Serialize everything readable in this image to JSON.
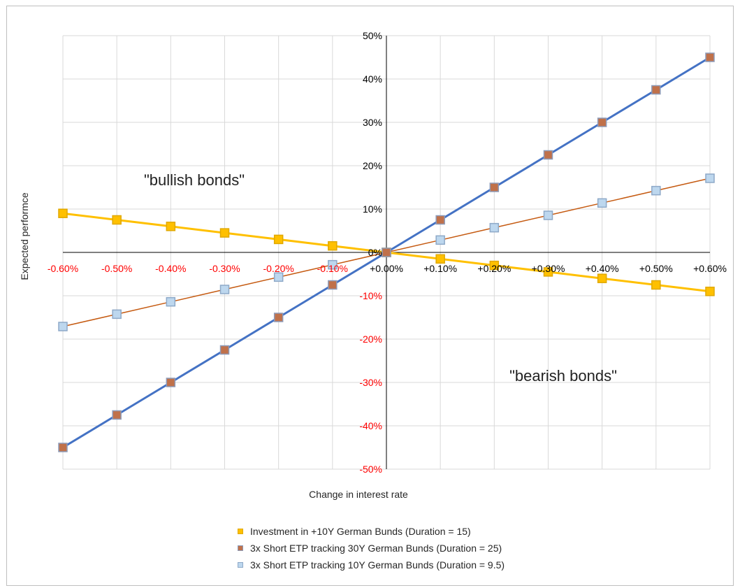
{
  "chart_data": {
    "type": "line",
    "title": "",
    "xlabel": "Change in interest rate",
    "ylabel": "Expected performce",
    "x": [
      -0.006,
      -0.005,
      -0.004,
      -0.003,
      -0.002,
      -0.001,
      0,
      0.001,
      0.002,
      0.003,
      0.004,
      0.005,
      0.006
    ],
    "x_tick_labels": [
      "-0.60%",
      "-0.50%",
      "-0.40%",
      "-0.30%",
      "-0.20%",
      "-0.10%",
      "+0.00%",
      "+0.10%",
      "+0.20%",
      "+0.30%",
      "+0.40%",
      "+0.50%",
      "+0.60%"
    ],
    "y_tick_values": [
      0.5,
      0.4,
      0.3,
      0.2,
      0.1,
      0,
      -0.1,
      -0.2,
      -0.3,
      -0.4,
      -0.5
    ],
    "y_tick_labels": [
      "50%",
      "40%",
      "30%",
      "20%",
      "10%",
      "0%",
      "-10%",
      "-20%",
      "-30%",
      "-40%",
      "-50%"
    ],
    "ylim": [
      -0.5,
      0.5
    ],
    "grid": true,
    "legend_position": "bottom",
    "annotations": [
      {
        "text": "\"bullish bonds\""
      },
      {
        "text": "\"bearish bonds\""
      }
    ],
    "series": [
      {
        "name": "Investment in +10Y German Bunds (Duration = 15)",
        "line_color": "#FFC000",
        "marker_fill": "#FFC000",
        "marker_edge": "#E0A800",
        "values": [
          0.09,
          0.075,
          0.06,
          0.045,
          0.03,
          0.015,
          0,
          -0.015,
          -0.03,
          -0.045,
          -0.06,
          -0.075,
          -0.09
        ]
      },
      {
        "name": "3x Short ETP tracking 30Y German Bunds (Duration = 25)",
        "line_color": "#4472C4",
        "marker_fill": "#C0714A",
        "marker_edge": "#8E9BB8",
        "values": [
          -0.45,
          -0.375,
          -0.3,
          -0.225,
          -0.15,
          -0.075,
          0,
          0.075,
          0.15,
          0.225,
          0.3,
          0.375,
          0.45
        ]
      },
      {
        "name": "3x Short ETP tracking 10Y German Bunds (Duration = 9.5)",
        "line_color": "#C55A11",
        "marker_fill": "#BDD7EE",
        "marker_edge": "#8EA9C8",
        "values": [
          -0.171,
          -0.1425,
          -0.114,
          -0.0855,
          -0.057,
          -0.0285,
          0,
          0.0285,
          0.057,
          0.0855,
          0.114,
          0.1425,
          0.171
        ]
      }
    ],
    "colors": {
      "positive_tick": "#000000",
      "negative_tick": "#FF0000",
      "grid": "#D9D9D9",
      "axis": "#000000"
    }
  }
}
